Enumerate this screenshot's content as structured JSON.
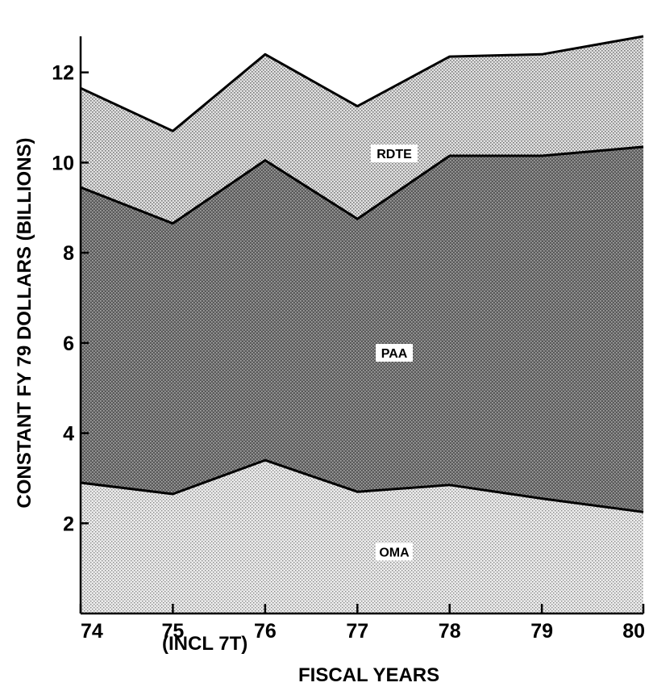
{
  "chart_data": {
    "type": "area",
    "stacked": true,
    "title": "",
    "xlabel": "FISCAL YEARS",
    "ylabel": "CONSTANT FY 79 DOLLARS (BILLIONS)",
    "x_note": "(INCL 7T)",
    "x": [
      74,
      75,
      76,
      77,
      78,
      79,
      80
    ],
    "x_tick_labels": [
      "74",
      "75",
      "76",
      "77",
      "78",
      "79",
      "80"
    ],
    "y_ticks": [
      2,
      4,
      6,
      8,
      10,
      12
    ],
    "ylim": [
      0,
      12.8
    ],
    "xlim": [
      74,
      80.1
    ],
    "grid": false,
    "series": [
      {
        "name": "OMA",
        "values": [
          2.9,
          2.65,
          3.4,
          2.7,
          2.85,
          2.55,
          2.25
        ],
        "color": "#d8d8d8",
        "pattern": "light-dots"
      },
      {
        "name": "PAA",
        "values": [
          6.55,
          6.0,
          6.65,
          6.05,
          7.3,
          7.6,
          8.1
        ],
        "color": "#6a6a6a",
        "pattern": "dark-dots"
      },
      {
        "name": "RDTE",
        "values": [
          2.2,
          2.05,
          2.35,
          2.5,
          2.2,
          2.25,
          2.45
        ],
        "color": "#cfcfcf",
        "pattern": "medium-dots"
      }
    ]
  }
}
